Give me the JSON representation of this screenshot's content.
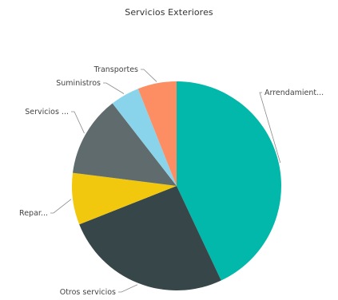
{
  "chart_data": {
    "type": "pie",
    "title": "Servicios Exteriores",
    "start_angle_deg": 0,
    "direction": "clockwise",
    "slices": [
      {
        "label": "Arrendamient...",
        "value": 43.0,
        "color": "#01B8AA"
      },
      {
        "label": "Otros servicios",
        "value": 26.0,
        "color": "#374649"
      },
      {
        "label": "Repar...",
        "value": 8.0,
        "color": "#F2C80F"
      },
      {
        "label": "Servicios ...",
        "value": 12.5,
        "color": "#5F6B6D"
      },
      {
        "label": "Suministros",
        "value": 4.5,
        "color": "#8AD4EB"
      },
      {
        "label": "Transportes",
        "value": 6.0,
        "color": "#FD8D62"
      }
    ]
  }
}
